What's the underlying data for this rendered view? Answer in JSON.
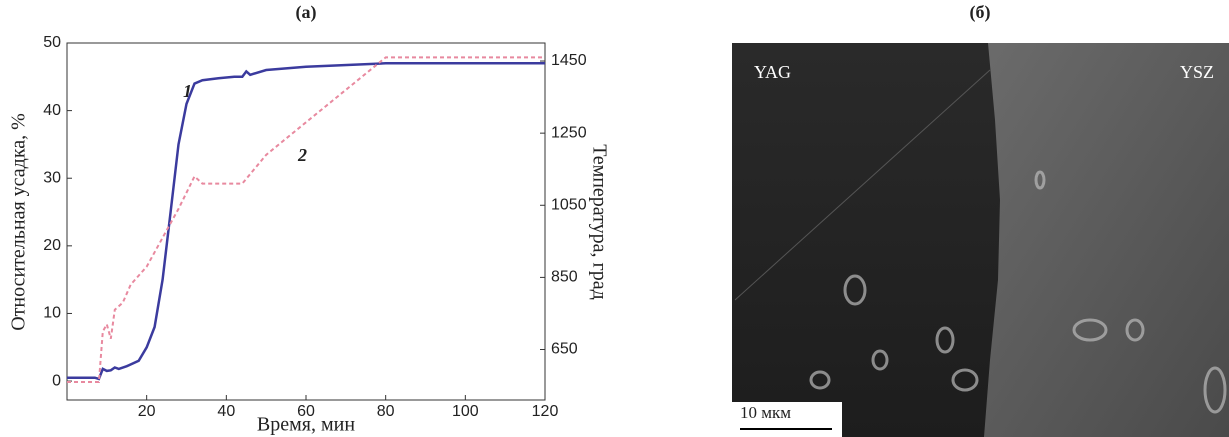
{
  "chart_data": {
    "type": "line",
    "panel_label": "(а)",
    "xlabel": "Время, мин",
    "ylabel": "Относительная усадка, %",
    "y2label": "Температура, град",
    "xlim": [
      0,
      120
    ],
    "xticks": [
      20,
      40,
      60,
      80,
      100,
      120
    ],
    "ylim": [
      -2.8,
      50
    ],
    "yticks": [
      0,
      10,
      20,
      30,
      40,
      50
    ],
    "y2lim": [
      510,
      1500
    ],
    "y2ticks": [
      650,
      850,
      1050,
      1250,
      1450
    ],
    "annotations": [
      "1",
      "2"
    ],
    "series": [
      {
        "name": "1",
        "color": "#3b3b9e",
        "dash": false,
        "x": [
          0,
          7,
          8,
          9,
          10,
          11,
          12,
          13,
          15,
          18,
          20,
          22,
          24,
          26,
          28,
          30,
          32,
          34,
          38,
          42,
          44,
          45,
          46,
          50,
          60,
          80,
          120
        ],
        "values": [
          0.5,
          0.5,
          0.3,
          1.8,
          1.5,
          1.6,
          2,
          1.8,
          2.2,
          3,
          5,
          8,
          15,
          25,
          35,
          41,
          44,
          44.5,
          44.8,
          45,
          45,
          45.8,
          45.3,
          46,
          46.5,
          47,
          47
        ]
      },
      {
        "name": "2",
        "color": "#e8899f",
        "dash": true,
        "axis": "y2",
        "x": [
          0,
          8,
          9,
          10,
          11,
          12,
          14,
          16,
          20,
          24,
          28,
          32,
          34,
          44,
          50,
          60,
          70,
          80,
          120
        ],
        "values": [
          560,
          560,
          700,
          720,
          680,
          760,
          780,
          830,
          880,
          960,
          1040,
          1130,
          1110,
          1110,
          1190,
          1280,
          1370,
          1460,
          1460
        ]
      }
    ]
  },
  "image": {
    "panel_label": "(б)",
    "left_label": "YAG",
    "right_label": "YSZ",
    "scale_bar": "10 мкм"
  }
}
